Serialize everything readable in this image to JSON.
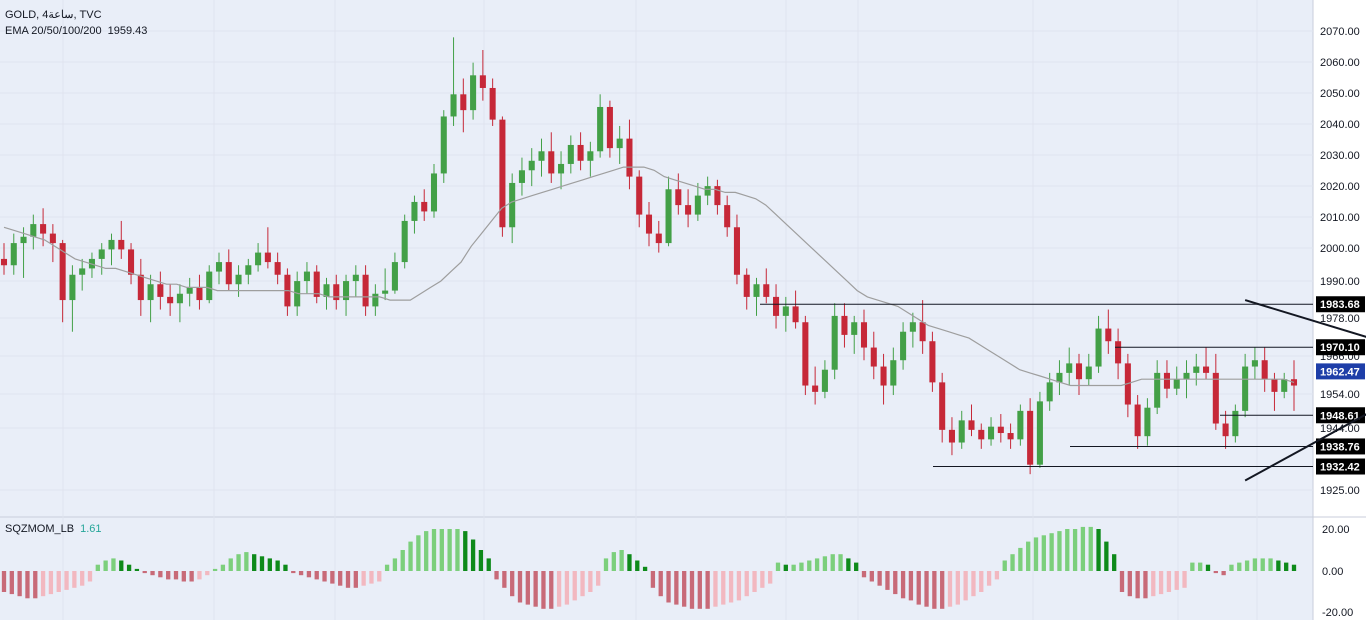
{
  "legend": {
    "symbol": "GOLD, 4ساعة, TVC",
    "ema_label": "EMA 20/50/100/200",
    "ema_value": "1959.43",
    "osc_label": "SQZMOM_LB",
    "osc_value": "1.61"
  },
  "colors": {
    "background": "#e9eef8",
    "up": "#43a047",
    "down": "#c62838",
    "ema": "#9e9e9e",
    "mom_up_strong": "#0e8a1a",
    "mom_up_weak": "#7ccf7c",
    "mom_down_strong": "#c86a78",
    "mom_down_weak": "#f2b8c0",
    "current_price_tag": "#1e3ea8",
    "price_tag": "#000000"
  },
  "chart_data": [
    {
      "type": "candlestick",
      "instrument": "GOLD",
      "y_ticks": [
        "2070.00",
        "2060.00",
        "2050.00",
        "2040.00",
        "2030.00",
        "2020.00",
        "2010.00",
        "2000.00",
        "1990.00",
        "1978.00",
        "1966.00",
        "1954.00",
        "1944.00",
        "1925.00"
      ],
      "ylim": [
        1925,
        2070
      ],
      "ohlc_series": [
        [
          1998,
          2003,
          1993,
          1996
        ],
        [
          1996,
          2006,
          1993,
          2003
        ],
        [
          2003,
          2008,
          1992,
          2005
        ],
        [
          2005,
          2012,
          2001,
          2009
        ],
        [
          2009,
          2014,
          2002,
          2006
        ],
        [
          2006,
          2009,
          1997,
          2003
        ],
        [
          2003,
          2004,
          1978,
          1985
        ],
        [
          1985,
          1996,
          1975,
          1993
        ],
        [
          1993,
          1998,
          1988,
          1995
        ],
        [
          1995,
          2000,
          1992,
          1998
        ],
        [
          1998,
          2003,
          1993,
          2001
        ],
        [
          2001,
          2006,
          1996,
          2004
        ],
        [
          2004,
          2010,
          1998,
          2001
        ],
        [
          2001,
          2003,
          1990,
          1993
        ],
        [
          1993,
          1998,
          1980,
          1985
        ],
        [
          1985,
          1993,
          1978,
          1990
        ],
        [
          1990,
          1994,
          1982,
          1986
        ],
        [
          1986,
          1990,
          1980,
          1984
        ],
        [
          1984,
          1990,
          1978,
          1987
        ],
        [
          1987,
          1992,
          1983,
          1989
        ],
        [
          1989,
          1993,
          1982,
          1985
        ],
        [
          1985,
          1996,
          1984,
          1994
        ],
        [
          1994,
          2000,
          1990,
          1997
        ],
        [
          1997,
          2001,
          1988,
          1990
        ],
        [
          1990,
          1996,
          1986,
          1993
        ],
        [
          1993,
          1998,
          1990,
          1996
        ],
        [
          1996,
          2003,
          1994,
          2000
        ],
        [
          2000,
          2008,
          1995,
          1997
        ],
        [
          1997,
          2000,
          1990,
          1993
        ],
        [
          1993,
          1995,
          1980,
          1983
        ],
        [
          1983,
          1994,
          1980,
          1991
        ],
        [
          1991,
          1997,
          1987,
          1994
        ],
        [
          1994,
          1996,
          1984,
          1986
        ],
        [
          1986,
          1992,
          1982,
          1990
        ],
        [
          1990,
          1993,
          1982,
          1985
        ],
        [
          1985,
          1993,
          1980,
          1991
        ],
        [
          1991,
          1996,
          1986,
          1993
        ],
        [
          1993,
          1996,
          1980,
          1983
        ],
        [
          1983,
          1990,
          1980,
          1987
        ],
        [
          1987,
          1995,
          1985,
          1988
        ],
        [
          1988,
          2000,
          1987,
          1997
        ],
        [
          1997,
          2012,
          1995,
          2010
        ],
        [
          2010,
          2018,
          2006,
          2016
        ],
        [
          2016,
          2020,
          2010,
          2013
        ],
        [
          2013,
          2028,
          2011,
          2025
        ],
        [
          2025,
          2045,
          2022,
          2043
        ],
        [
          2043,
          2068,
          2040,
          2050
        ],
        [
          2050,
          2055,
          2038,
          2045
        ],
        [
          2045,
          2060,
          2042,
          2056
        ],
        [
          2056,
          2064,
          2048,
          2052
        ],
        [
          2052,
          2055,
          2040,
          2042
        ],
        [
          2042,
          2043,
          2005,
          2008
        ],
        [
          2008,
          2025,
          2003,
          2022
        ],
        [
          2022,
          2030,
          2018,
          2026
        ],
        [
          2026,
          2033,
          2021,
          2029
        ],
        [
          2029,
          2036,
          2024,
          2032
        ],
        [
          2032,
          2038,
          2022,
          2025
        ],
        [
          2025,
          2032,
          2020,
          2028
        ],
        [
          2028,
          2037,
          2025,
          2034
        ],
        [
          2034,
          2038,
          2026,
          2029
        ],
        [
          2029,
          2035,
          2024,
          2032
        ],
        [
          2032,
          2050,
          2030,
          2046
        ],
        [
          2046,
          2048,
          2030,
          2033
        ],
        [
          2033,
          2040,
          2028,
          2036
        ],
        [
          2036,
          2042,
          2020,
          2024
        ],
        [
          2024,
          2026,
          2008,
          2012
        ],
        [
          2012,
          2016,
          2002,
          2006
        ],
        [
          2006,
          2010,
          2000,
          2003
        ],
        [
          2003,
          2024,
          2002,
          2020
        ],
        [
          2020,
          2025,
          2012,
          2015
        ],
        [
          2015,
          2020,
          2008,
          2012
        ],
        [
          2012,
          2022,
          2010,
          2018
        ],
        [
          2018,
          2024,
          2015,
          2021
        ],
        [
          2021,
          2023,
          2012,
          2015
        ],
        [
          2015,
          2018,
          2005,
          2008
        ],
        [
          2008,
          2012,
          1990,
          1993
        ],
        [
          1993,
          1995,
          1982,
          1986
        ],
        [
          1986,
          1992,
          1980,
          1990
        ],
        [
          1990,
          1995,
          1984,
          1986
        ],
        [
          1986,
          1990,
          1976,
          1980
        ],
        [
          1980,
          1986,
          1975,
          1983
        ],
        [
          1983,
          1988,
          1976,
          1978
        ],
        [
          1978,
          1980,
          1955,
          1958
        ],
        [
          1958,
          1964,
          1952,
          1956
        ],
        [
          1956,
          1966,
          1954,
          1963
        ],
        [
          1963,
          1984,
          1960,
          1980
        ],
        [
          1980,
          1984,
          1970,
          1974
        ],
        [
          1974,
          1980,
          1968,
          1978
        ],
        [
          1978,
          1982,
          1966,
          1970
        ],
        [
          1970,
          1975,
          1960,
          1964
        ],
        [
          1964,
          1968,
          1952,
          1958
        ],
        [
          1958,
          1970,
          1955,
          1966
        ],
        [
          1966,
          1978,
          1963,
          1975
        ],
        [
          1975,
          1981,
          1970,
          1978
        ],
        [
          1978,
          1985,
          1968,
          1972
        ],
        [
          1972,
          1975,
          1956,
          1959
        ],
        [
          1959,
          1962,
          1940,
          1944
        ],
        [
          1944,
          1948,
          1936,
          1940
        ],
        [
          1940,
          1950,
          1938,
          1947
        ],
        [
          1947,
          1952,
          1942,
          1944
        ],
        [
          1944,
          1946,
          1938,
          1941
        ],
        [
          1941,
          1948,
          1939,
          1945
        ],
        [
          1945,
          1949,
          1940,
          1943
        ],
        [
          1943,
          1946,
          1938,
          1941
        ],
        [
          1941,
          1952,
          1939,
          1950
        ],
        [
          1950,
          1954,
          1930,
          1933
        ],
        [
          1933,
          1956,
          1932,
          1953
        ],
        [
          1953,
          1962,
          1950,
          1959
        ],
        [
          1959,
          1966,
          1955,
          1962
        ],
        [
          1962,
          1970,
          1958,
          1965
        ],
        [
          1965,
          1968,
          1955,
          1960
        ],
        [
          1960,
          1968,
          1958,
          1964
        ],
        [
          1964,
          1980,
          1962,
          1976
        ],
        [
          1976,
          1982,
          1968,
          1972
        ],
        [
          1972,
          1976,
          1960,
          1965
        ],
        [
          1965,
          1968,
          1948,
          1952
        ],
        [
          1952,
          1955,
          1938,
          1942
        ],
        [
          1942,
          1954,
          1939,
          1951
        ],
        [
          1951,
          1966,
          1949,
          1962
        ],
        [
          1962,
          1966,
          1954,
          1957
        ],
        [
          1957,
          1964,
          1955,
          1960
        ],
        [
          1960,
          1966,
          1954,
          1962
        ],
        [
          1962,
          1968,
          1958,
          1964
        ],
        [
          1964,
          1970,
          1960,
          1962
        ],
        [
          1962,
          1968,
          1944,
          1946
        ],
        [
          1946,
          1950,
          1938,
          1942
        ],
        [
          1942,
          1952,
          1940,
          1950
        ],
        [
          1950,
          1968,
          1948,
          1964
        ],
        [
          1964,
          1970,
          1960,
          1966
        ],
        [
          1966,
          1970,
          1956,
          1960
        ],
        [
          1960,
          1962,
          1950,
          1956
        ],
        [
          1956,
          1962,
          1954,
          1960
        ],
        [
          1960,
          1966,
          1950,
          1958
        ]
      ],
      "ema_values": [
        2008,
        2007,
        2006,
        2005,
        2004,
        2002,
        2000,
        1998,
        1997,
        1996,
        1995,
        1995,
        1994,
        1993,
        1992,
        1991,
        1990,
        1990,
        1989,
        1989,
        1989,
        1988,
        1988,
        1988,
        1988,
        1988,
        1988,
        1988,
        1988,
        1987,
        1987,
        1987,
        1986,
        1986,
        1986,
        1986,
        1986,
        1986,
        1985,
        1985,
        1985,
        1987,
        1989,
        1991,
        1994,
        1997,
        2002,
        2006,
        2010,
        2014,
        2016,
        2017,
        2018,
        2019,
        2020,
        2021,
        2022,
        2023,
        2024,
        2025,
        2026,
        2027,
        2027,
        2027,
        2026,
        2024,
        2023,
        2022,
        2021,
        2020,
        2020,
        2019,
        2019,
        2018,
        2017,
        2015,
        2012,
        2009,
        2006,
        2003,
        2000,
        1997,
        1994,
        1991,
        1988,
        1986,
        1985,
        1984,
        1983,
        1981,
        1979,
        1977,
        1976,
        1975,
        1974,
        1973,
        1971,
        1969,
        1967,
        1965,
        1963,
        1962,
        1961,
        1960,
        1959,
        1958,
        1958,
        1958,
        1958,
        1958,
        1958,
        1959,
        1960,
        1960,
        1960,
        1960,
        1960,
        1960,
        1960,
        1960,
        1960,
        1960,
        1960,
        1960,
        1960,
        1960,
        1960,
        1959
      ],
      "hlines": [
        {
          "value": 1983.68,
          "label": "1983.68"
        },
        {
          "value": 1970.1,
          "label": "1970.10"
        },
        {
          "value": 1948.61,
          "label": "1948.61"
        },
        {
          "value": 1938.76,
          "label": "1938.76"
        },
        {
          "value": 1932.42,
          "label": "1932.42"
        }
      ],
      "trendlines": [
        {
          "from": [
            127,
            1985
          ],
          "to": [
            143,
            1970
          ]
        },
        {
          "from": [
            127,
            1928
          ],
          "to": [
            143,
            1955
          ]
        }
      ],
      "current_price": {
        "value": 1962.47,
        "label": "1962.47"
      }
    },
    {
      "type": "bar",
      "name": "SQZMOM_LB",
      "y_ticks": [
        "20.00",
        "0.00",
        "-20.00"
      ],
      "ylim": [
        -20,
        20
      ],
      "values": [
        -10,
        -11,
        -12,
        -13,
        -13,
        -12,
        -11,
        -10,
        -9,
        -8,
        -7,
        -5,
        3,
        5,
        6,
        5,
        3,
        1,
        -1,
        -2,
        -3,
        -4,
        -4,
        -5,
        -5,
        -4,
        -2,
        1,
        3,
        6,
        8,
        9,
        8,
        7,
        6,
        5,
        3,
        -1,
        -2,
        -3,
        -4,
        -5,
        -6,
        -7,
        -8,
        -8,
        -7,
        -6,
        -5,
        3,
        6,
        10,
        14,
        17,
        19,
        20,
        20,
        20,
        20,
        19,
        15,
        10,
        6,
        -4,
        -8,
        -12,
        -15,
        -16,
        -17,
        -18,
        -18,
        -17,
        -16,
        -14,
        -12,
        -10,
        -7,
        6,
        9,
        10,
        8,
        5,
        2,
        -8,
        -12,
        -15,
        -16,
        -17,
        -18,
        -18,
        -18,
        -17,
        -16,
        -15,
        -14,
        -12,
        -10,
        -8,
        -6,
        4,
        3,
        3,
        4,
        5,
        6,
        7,
        8,
        8,
        6,
        4,
        -3,
        -5,
        -7,
        -9,
        -11,
        -13,
        -14,
        -16,
        -17,
        -18,
        -18,
        -17,
        -16,
        -14,
        -12,
        -10,
        -7,
        -4,
        5,
        8,
        11,
        14,
        16,
        17,
        18,
        19,
        20,
        20,
        21,
        21,
        20,
        14,
        8,
        -10,
        -12,
        -13,
        -13,
        -12,
        -11,
        -10,
        -9,
        -8,
        4,
        4,
        3,
        -1,
        -2,
        3,
        4,
        5,
        6,
        6,
        6,
        5,
        4,
        3
      ]
    }
  ]
}
